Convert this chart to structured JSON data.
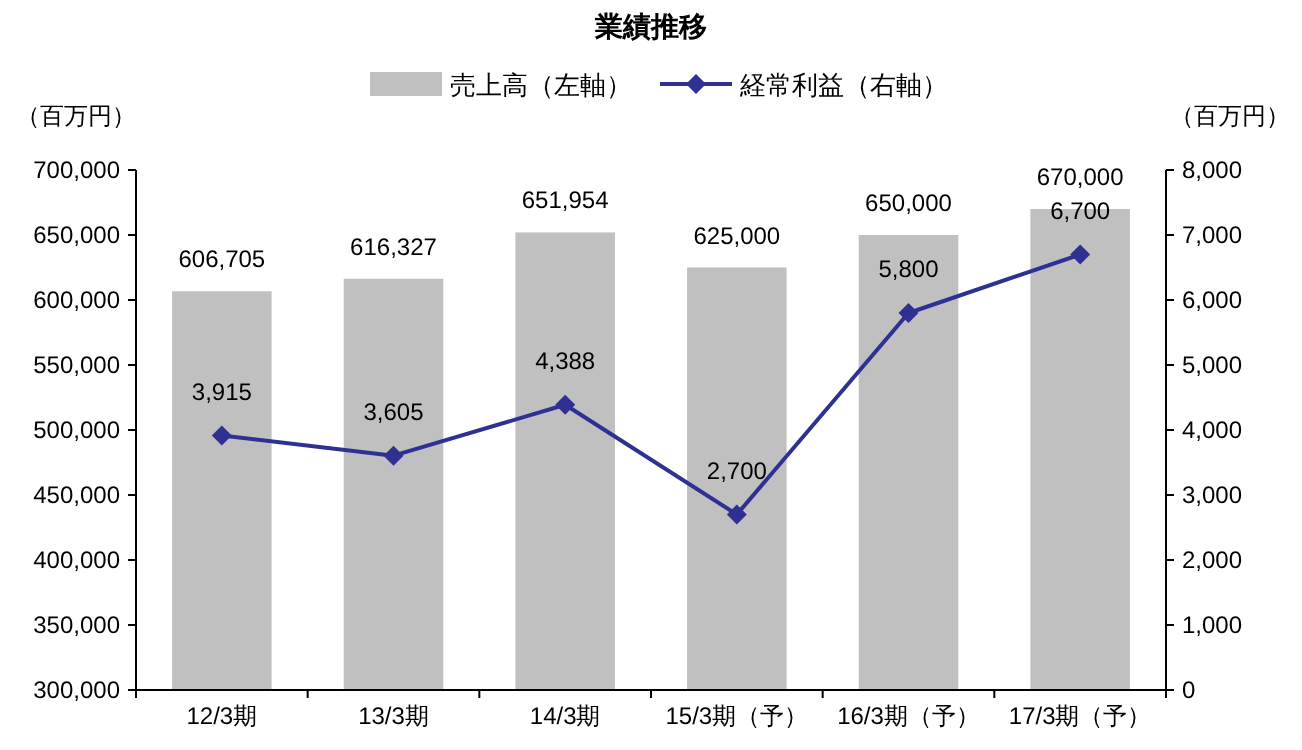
{
  "chart_data": {
    "type": "bar",
    "title": "業績推移",
    "ylabel": "（百万円）",
    "y2label": "（百万円）",
    "legend": "top",
    "categories": [
      "12/3期",
      "13/3期",
      "14/3期",
      "15/3期（予）",
      "16/3期（予）",
      "17/3期（予）"
    ],
    "series": [
      {
        "name": "売上高（左軸）",
        "color": "#c0c0c0",
        "values": [
          606705,
          616327,
          651954,
          625000,
          650000,
          670000
        ],
        "value_labels": [
          "606,705",
          "616,327",
          "651,954",
          "625,000",
          "650,000",
          "670,000"
        ]
      },
      {
        "name": "経常利益（右軸）",
        "type": "line",
        "axis": "y2",
        "marker": "diamond",
        "color": "#2e3192",
        "values": [
          3915,
          3605,
          4388,
          2700,
          5800,
          6700
        ],
        "value_labels": [
          "3,915",
          "3,605",
          "4,388",
          "2,700",
          "5,800",
          "6,700"
        ]
      }
    ],
    "ylim": [
      300000,
      700000
    ],
    "yticks": [
      {
        "value": 300000,
        "label": "300,000"
      },
      {
        "value": 350000,
        "label": "350,000"
      },
      {
        "value": 400000,
        "label": "400,000"
      },
      {
        "value": 450000,
        "label": "450,000"
      },
      {
        "value": 500000,
        "label": "500,000"
      },
      {
        "value": 550000,
        "label": "550,000"
      },
      {
        "value": 600000,
        "label": "600,000"
      },
      {
        "value": 650000,
        "label": "650,000"
      },
      {
        "value": 700000,
        "label": "700,000"
      }
    ],
    "y2lim": [
      0,
      8000
    ],
    "y2ticks": [
      0,
      {
        "value": 1000,
        "label": "1,000"
      },
      {
        "value": 2000,
        "label": "2,000"
      },
      {
        "value": 3000,
        "label": "3,000"
      },
      {
        "value": 4000,
        "label": "4,000"
      },
      {
        "value": 5000,
        "label": "5,000"
      },
      {
        "value": 6000,
        "label": "6,000"
      },
      {
        "value": 7000,
        "label": "7,000"
      },
      {
        "value": 8000,
        "label": "8,000"
      }
    ]
  }
}
